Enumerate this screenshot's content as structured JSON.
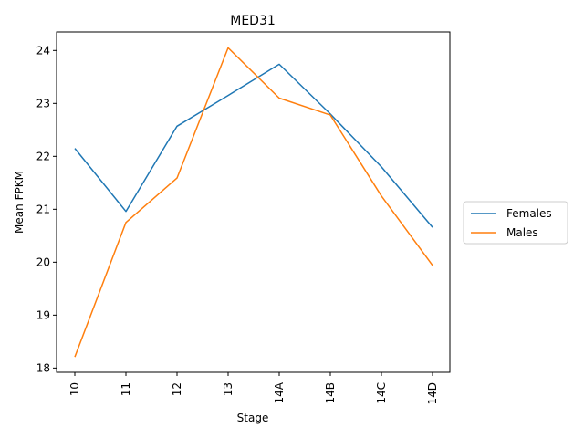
{
  "chart_data": {
    "type": "line",
    "title": "MED31",
    "xlabel": "Stage",
    "ylabel": "Mean FPKM",
    "categories": [
      "10",
      "11",
      "12",
      "13",
      "14A",
      "14B",
      "14C",
      "14D"
    ],
    "ylim": [
      17.92,
      24.35
    ],
    "yticks": [
      18,
      19,
      20,
      21,
      22,
      23,
      24
    ],
    "grid": false,
    "legend_position": "right",
    "series": [
      {
        "name": "Females",
        "color": "#1f77b4",
        "values": [
          22.15,
          20.96,
          22.57,
          23.15,
          23.74,
          22.8,
          21.8,
          20.66
        ]
      },
      {
        "name": "Males",
        "color": "#ff7f0e",
        "values": [
          18.21,
          20.75,
          21.59,
          24.05,
          23.1,
          22.78,
          21.25,
          19.94
        ]
      }
    ]
  }
}
